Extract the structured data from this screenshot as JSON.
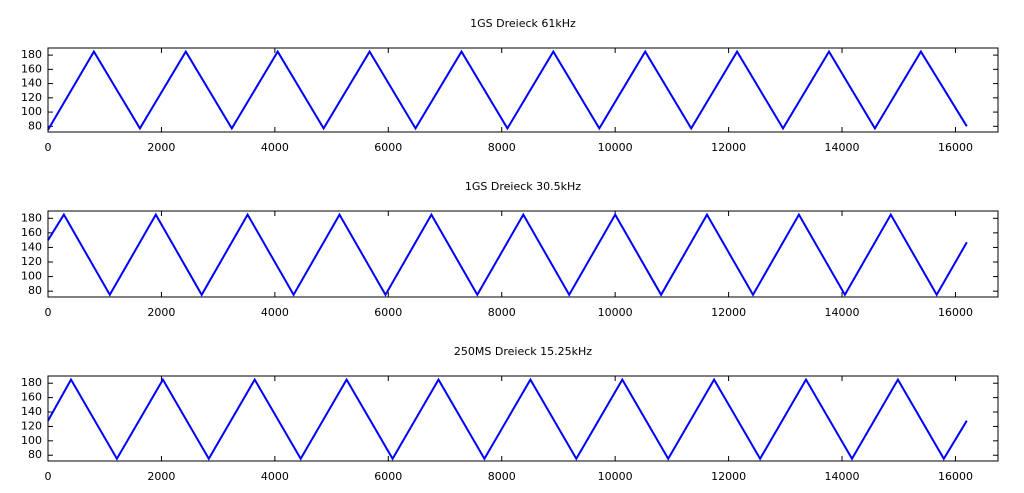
{
  "chart_data": [
    {
      "type": "line",
      "title": "1GS Dreieck 61kHz",
      "color": "#0000ff",
      "x": [
        0,
        810,
        1620,
        2430,
        3240,
        4050,
        4860,
        5670,
        6480,
        7290,
        8100,
        8910,
        9720,
        10530,
        11340,
        12150,
        12960,
        13770,
        14580,
        15390,
        16200
      ],
      "values": [
        75,
        185,
        77,
        185,
        77,
        185,
        77,
        185,
        77,
        185,
        77,
        185,
        77,
        185,
        77,
        185,
        77,
        185,
        77,
        185,
        80
      ],
      "xlim": [
        0,
        16750
      ],
      "ylim": [
        72,
        190
      ],
      "xticks": [
        0,
        2000,
        4000,
        6000,
        8000,
        10000,
        12000,
        14000,
        16000
      ],
      "yticks": [
        80,
        100,
        120,
        140,
        160,
        180
      ]
    },
    {
      "type": "line",
      "title": "1GS Dreieck 30.5kHz",
      "color": "#0000ff",
      "x": [
        0,
        280,
        1090,
        1900,
        2710,
        3520,
        4330,
        5140,
        5950,
        6760,
        7570,
        8380,
        9190,
        10000,
        10810,
        11620,
        12430,
        13240,
        14050,
        14860,
        15670,
        16200
      ],
      "values": [
        150,
        185,
        75,
        185,
        75,
        185,
        75,
        185,
        75,
        185,
        75,
        185,
        75,
        185,
        75,
        185,
        75,
        185,
        75,
        185,
        75,
        147
      ],
      "xlim": [
        0,
        16750
      ],
      "ylim": [
        72,
        190
      ],
      "xticks": [
        0,
        2000,
        4000,
        6000,
        8000,
        10000,
        12000,
        14000,
        16000
      ],
      "yticks": [
        80,
        100,
        120,
        140,
        160,
        180
      ]
    },
    {
      "type": "line",
      "title": "250MS Dreieck 15.25kHz",
      "color": "#0000ff",
      "x": [
        0,
        405,
        1215,
        2025,
        2835,
        3645,
        4455,
        5265,
        6075,
        6885,
        7695,
        8505,
        9315,
        10125,
        10935,
        11745,
        12555,
        13365,
        14175,
        14985,
        15795,
        16200
      ],
      "values": [
        128,
        185,
        75,
        185,
        75,
        185,
        75,
        185,
        75,
        185,
        75,
        185,
        75,
        185,
        75,
        185,
        75,
        185,
        75,
        185,
        75,
        128
      ],
      "xlim": [
        0,
        16750
      ],
      "ylim": [
        72,
        190
      ],
      "xticks": [
        0,
        2000,
        4000,
        6000,
        8000,
        10000,
        12000,
        14000,
        16000
      ],
      "yticks": [
        80,
        100,
        120,
        140,
        160,
        180
      ]
    }
  ]
}
